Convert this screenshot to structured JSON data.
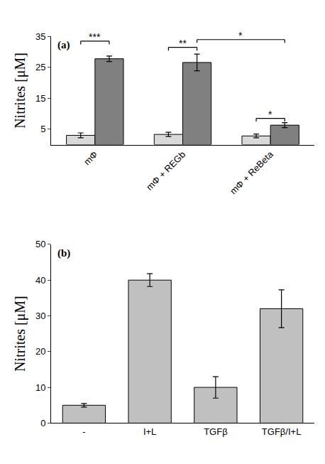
{
  "chart_data": [
    {
      "type": "bar",
      "panel_label": "(a)",
      "categories": [
        "mΦ",
        "mΦ + REGb",
        "mΦ + ReBeta"
      ],
      "y_label": "Nitrites [μM]",
      "ylim": [
        0,
        35
      ],
      "yticks": [
        5,
        15,
        25,
        35
      ],
      "series": [
        {
          "color": "#d9d9d9",
          "values": [
            3,
            3.3,
            2.8
          ],
          "errors": [
            0.8,
            0.7,
            0.6
          ]
        },
        {
          "color": "#808080",
          "values": [
            27.8,
            26.6,
            6.3
          ],
          "errors": [
            0.9,
            2.7,
            0.8
          ]
        }
      ],
      "significance": [
        {
          "text": "***",
          "from": {
            "category": "mΦ",
            "series": 0
          },
          "to": {
            "category": "mΦ",
            "series": 1
          },
          "y": 33.5
        },
        {
          "text": "**",
          "from": {
            "category": "mΦ + REGb",
            "series": 0
          },
          "to": {
            "category": "mΦ + REGb",
            "series": 1
          },
          "y": 31.5
        },
        {
          "text": "*",
          "from": {
            "category": "mΦ + REGb",
            "series": 1
          },
          "to": {
            "category": "mΦ + ReBeta",
            "series": 1
          },
          "y": 34
        },
        {
          "text": "*",
          "from": {
            "category": "mΦ + ReBeta",
            "series": 0
          },
          "to": {
            "category": "mΦ + ReBeta",
            "series": 1
          },
          "y": 8.5
        }
      ]
    },
    {
      "type": "bar",
      "panel_label": "(b)",
      "categories": [
        "-",
        "I+L",
        "TGFβ",
        "TGFβ/I+L"
      ],
      "y_label": "Nitrites [μM]",
      "ylim": [
        0,
        50
      ],
      "yticks": [
        0,
        10,
        20,
        30,
        40,
        50
      ],
      "color": "#c0c0c0",
      "values": [
        5,
        40,
        10,
        32
      ],
      "errors": [
        0.5,
        1.8,
        3,
        5.3
      ]
    }
  ]
}
